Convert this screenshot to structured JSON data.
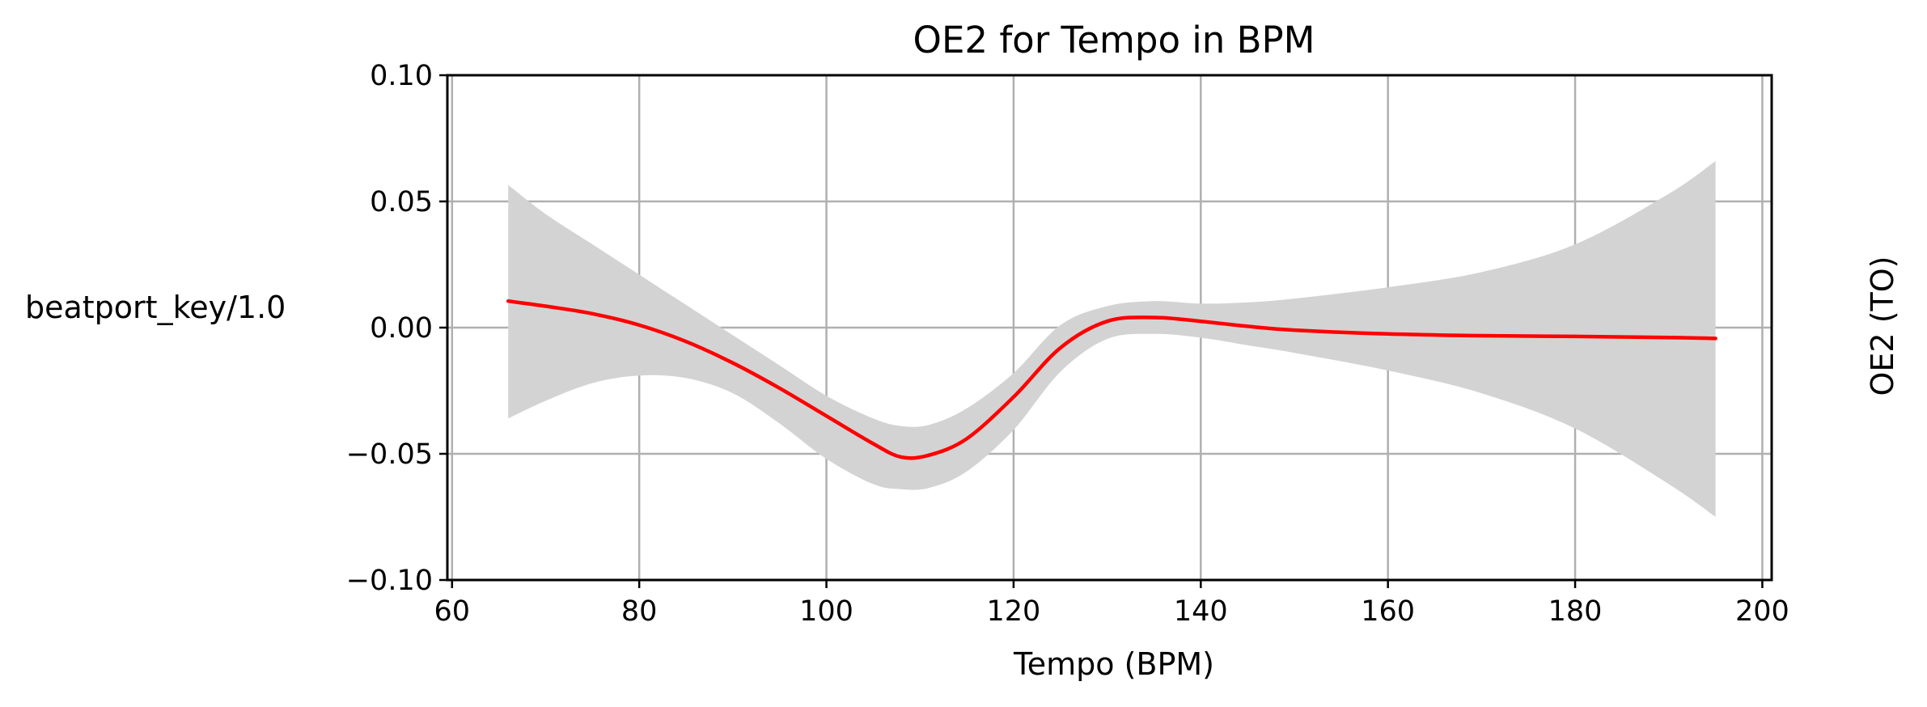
{
  "chart_data": {
    "type": "line",
    "title": "OE2 for Tempo in BPM",
    "xlabel": "Tempo (BPM)",
    "ylabel": "beatport_key/1.0",
    "right_label": "OE2 (TO)",
    "xlim": [
      59.5,
      201
    ],
    "ylim": [
      -0.1,
      0.1
    ],
    "xticks": [
      60,
      80,
      100,
      120,
      140,
      160,
      180,
      200
    ],
    "xtick_labels": [
      "60",
      "80",
      "100",
      "120",
      "140",
      "160",
      "180",
      "200"
    ],
    "yticks": [
      -0.1,
      -0.05,
      0.0,
      0.05,
      0.1
    ],
    "ytick_labels": [
      "−0.10",
      "−0.05",
      "0.00",
      "0.05",
      "0.10"
    ],
    "grid": true,
    "colors": {
      "line": "#ff0000",
      "band": "#d3d3d3",
      "grid": "#b0b0b0",
      "axes": "#000000"
    },
    "series": [
      {
        "x": [
          66,
          70,
          75,
          80,
          85,
          90,
          95,
          100,
          105,
          108,
          111,
          115,
          120,
          125,
          130,
          135,
          140,
          145,
          150,
          160,
          170,
          180,
          190,
          195
        ],
        "y": [
          0.0105,
          0.0085,
          0.0055,
          0.001,
          -0.0055,
          -0.014,
          -0.024,
          -0.035,
          -0.046,
          -0.0513,
          -0.0505,
          -0.044,
          -0.0275,
          -0.008,
          0.0025,
          0.004,
          0.0025,
          0.0005,
          -0.001,
          -0.0025,
          -0.0032,
          -0.0035,
          -0.0039,
          -0.0043
        ]
      },
      {
        "x": [
          66,
          70,
          75,
          80,
          85,
          90,
          95,
          100,
          105,
          108,
          111,
          115,
          120,
          125,
          130,
          135,
          140,
          145,
          150,
          160,
          170,
          180,
          190,
          195
        ],
        "lower": [
          -0.036,
          -0.029,
          -0.022,
          -0.019,
          -0.02,
          -0.026,
          -0.038,
          -0.052,
          -0.062,
          -0.064,
          -0.0635,
          -0.057,
          -0.0405,
          -0.0175,
          -0.0045,
          -0.0025,
          -0.004,
          -0.007,
          -0.01,
          -0.017,
          -0.026,
          -0.04,
          -0.062,
          -0.075
        ],
        "upper": [
          0.0565,
          0.045,
          0.033,
          0.021,
          0.009,
          -0.003,
          -0.015,
          -0.027,
          -0.036,
          -0.039,
          -0.0385,
          -0.032,
          -0.018,
          0.001,
          0.0085,
          0.0105,
          0.0095,
          0.01,
          0.0115,
          0.016,
          0.022,
          0.033,
          0.053,
          0.066
        ]
      }
    ]
  }
}
